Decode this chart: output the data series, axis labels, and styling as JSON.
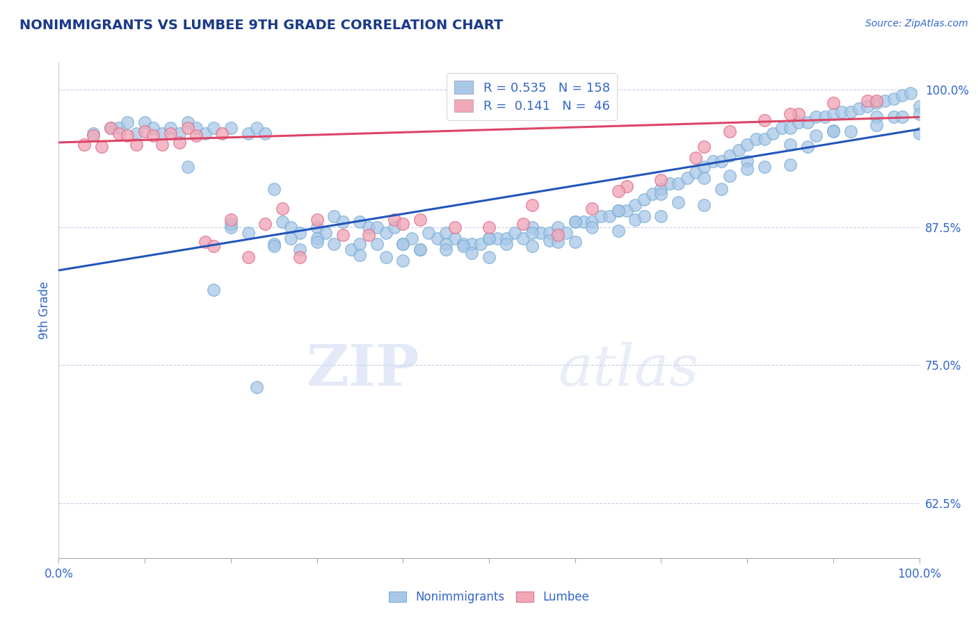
{
  "title": "NONIMMIGRANTS VS LUMBEE 9TH GRADE CORRELATION CHART",
  "source": "Source: ZipAtlas.com",
  "ylabel": "9th Grade",
  "ytick_labels": [
    "62.5%",
    "75.0%",
    "87.5%",
    "100.0%"
  ],
  "ytick_values": [
    0.625,
    0.75,
    0.875,
    1.0
  ],
  "xlim": [
    0.0,
    1.0
  ],
  "ylim": [
    0.575,
    1.025
  ],
  "blue_R": 0.535,
  "blue_N": 158,
  "pink_R": 0.141,
  "pink_N": 46,
  "blue_color": "#a8c8e8",
  "pink_color": "#f0a8b8",
  "blue_edge_color": "#7aadd4",
  "pink_edge_color": "#e07090",
  "blue_line_color": "#2255bb",
  "pink_line_color": "#dd4466",
  "legend_label_blue": "Nonimmigrants",
  "legend_label_pink": "Lumbee",
  "watermark_zip": "ZIP",
  "watermark_atlas": "atlas",
  "title_color": "#1a3a8a",
  "axis_color": "#3366cc",
  "tick_color": "#3366cc",
  "grid_color": "#c8cce8",
  "blue_line_start_y": 0.836,
  "blue_line_end_y": 0.964,
  "pink_line_start_y": 0.952,
  "pink_line_end_y": 0.975,
  "blue_scatter_x": [
    0.04,
    0.06,
    0.07,
    0.08,
    0.09,
    0.1,
    0.11,
    0.12,
    0.13,
    0.14,
    0.15,
    0.16,
    0.17,
    0.18,
    0.2,
    0.22,
    0.23,
    0.24,
    0.25,
    0.26,
    0.27,
    0.28,
    0.3,
    0.31,
    0.32,
    0.33,
    0.34,
    0.35,
    0.36,
    0.37,
    0.38,
    0.39,
    0.4,
    0.41,
    0.42,
    0.43,
    0.44,
    0.45,
    0.46,
    0.47,
    0.48,
    0.49,
    0.5,
    0.51,
    0.52,
    0.53,
    0.54,
    0.55,
    0.56,
    0.57,
    0.58,
    0.59,
    0.6,
    0.61,
    0.62,
    0.63,
    0.64,
    0.65,
    0.66,
    0.67,
    0.68,
    0.69,
    0.7,
    0.71,
    0.72,
    0.73,
    0.74,
    0.75,
    0.76,
    0.77,
    0.78,
    0.79,
    0.8,
    0.81,
    0.82,
    0.83,
    0.84,
    0.85,
    0.86,
    0.87,
    0.88,
    0.89,
    0.9,
    0.91,
    0.92,
    0.93,
    0.94,
    0.95,
    0.96,
    0.97,
    0.98,
    0.99,
    1.0,
    0.2,
    0.25,
    0.3,
    0.35,
    0.4,
    0.45,
    0.5,
    0.55,
    0.6,
    0.65,
    0.7,
    0.75,
    0.8,
    0.85,
    0.9,
    0.95,
    1.0,
    0.22,
    0.27,
    0.32,
    0.37,
    0.42,
    0.47,
    0.52,
    0.57,
    0.62,
    0.67,
    0.72,
    0.77,
    0.82,
    0.87,
    0.92,
    0.97,
    0.25,
    0.35,
    0.45,
    0.55,
    0.65,
    0.75,
    0.85,
    0.95,
    0.28,
    0.38,
    0.48,
    0.58,
    0.68,
    0.78,
    0.88,
    0.98,
    0.15,
    0.2,
    0.3,
    0.4,
    0.5,
    0.6,
    0.7,
    0.8,
    0.9,
    1.0,
    0.18,
    0.23
  ],
  "blue_scatter_y": [
    0.96,
    0.965,
    0.965,
    0.97,
    0.96,
    0.97,
    0.965,
    0.96,
    0.965,
    0.96,
    0.97,
    0.965,
    0.96,
    0.965,
    0.965,
    0.96,
    0.965,
    0.96,
    0.91,
    0.88,
    0.875,
    0.87,
    0.875,
    0.87,
    0.885,
    0.88,
    0.855,
    0.88,
    0.875,
    0.875,
    0.87,
    0.875,
    0.86,
    0.865,
    0.855,
    0.87,
    0.865,
    0.87,
    0.865,
    0.86,
    0.86,
    0.86,
    0.865,
    0.865,
    0.865,
    0.87,
    0.865,
    0.875,
    0.87,
    0.87,
    0.875,
    0.87,
    0.88,
    0.88,
    0.88,
    0.885,
    0.885,
    0.89,
    0.89,
    0.895,
    0.9,
    0.905,
    0.91,
    0.915,
    0.915,
    0.92,
    0.925,
    0.93,
    0.935,
    0.935,
    0.94,
    0.945,
    0.95,
    0.955,
    0.955,
    0.96,
    0.965,
    0.965,
    0.97,
    0.97,
    0.975,
    0.975,
    0.978,
    0.98,
    0.98,
    0.983,
    0.985,
    0.988,
    0.99,
    0.992,
    0.995,
    0.997,
    0.96,
    0.875,
    0.86,
    0.865,
    0.86,
    0.86,
    0.86,
    0.865,
    0.87,
    0.88,
    0.89,
    0.905,
    0.92,
    0.935,
    0.95,
    0.963,
    0.975,
    0.985,
    0.87,
    0.865,
    0.86,
    0.86,
    0.855,
    0.858,
    0.86,
    0.863,
    0.875,
    0.882,
    0.898,
    0.91,
    0.93,
    0.948,
    0.962,
    0.975,
    0.858,
    0.85,
    0.855,
    0.858,
    0.872,
    0.895,
    0.932,
    0.968,
    0.855,
    0.848,
    0.852,
    0.862,
    0.885,
    0.922,
    0.958,
    0.975,
    0.93,
    0.878,
    0.862,
    0.845,
    0.848,
    0.862,
    0.885,
    0.928,
    0.962,
    0.978,
    0.818,
    0.73
  ],
  "pink_scatter_x": [
    0.03,
    0.04,
    0.05,
    0.06,
    0.07,
    0.08,
    0.09,
    0.1,
    0.11,
    0.12,
    0.13,
    0.14,
    0.15,
    0.16,
    0.17,
    0.18,
    0.19,
    0.2,
    0.22,
    0.24,
    0.26,
    0.28,
    0.3,
    0.33,
    0.36,
    0.39,
    0.42,
    0.46,
    0.5,
    0.54,
    0.58,
    0.62,
    0.66,
    0.7,
    0.74,
    0.78,
    0.82,
    0.86,
    0.9,
    0.94,
    0.65,
    0.85,
    0.95,
    0.4,
    0.55,
    0.75
  ],
  "pink_scatter_y": [
    0.95,
    0.958,
    0.948,
    0.965,
    0.96,
    0.958,
    0.95,
    0.962,
    0.958,
    0.95,
    0.96,
    0.952,
    0.965,
    0.958,
    0.862,
    0.858,
    0.96,
    0.882,
    0.848,
    0.878,
    0.892,
    0.848,
    0.882,
    0.868,
    0.868,
    0.882,
    0.882,
    0.875,
    0.875,
    0.878,
    0.868,
    0.892,
    0.912,
    0.918,
    0.938,
    0.962,
    0.972,
    0.978,
    0.988,
    0.99,
    0.908,
    0.978,
    0.99,
    0.878,
    0.895,
    0.948
  ]
}
